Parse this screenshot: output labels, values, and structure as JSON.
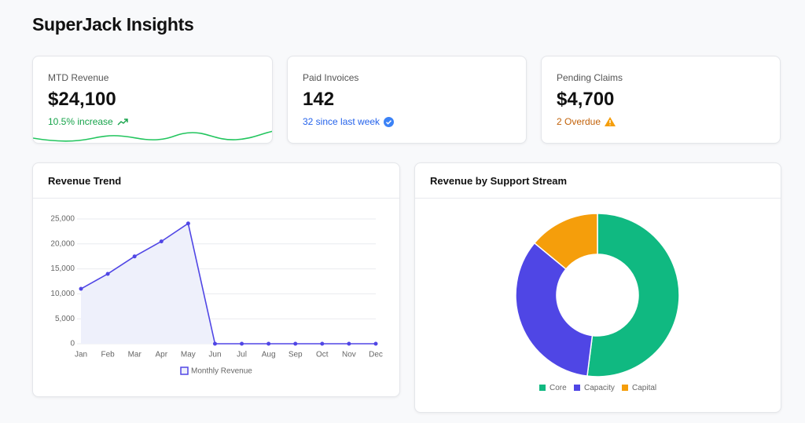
{
  "header": {
    "title": "SuperJack Insights"
  },
  "kpis": [
    {
      "label": "MTD Revenue",
      "value": "$24,100",
      "note": "10.5% increase"
    },
    {
      "label": "Paid Invoices",
      "value": "142",
      "note": "32 since last week"
    },
    {
      "label": "Pending Claims",
      "value": "$4,700",
      "note": "2 Overdue"
    }
  ],
  "chart_data": [
    {
      "type": "line",
      "title": "Revenue Trend",
      "categories": [
        "Jan",
        "Feb",
        "Mar",
        "Apr",
        "May",
        "Jun",
        "Jul",
        "Aug",
        "Sep",
        "Oct",
        "Nov",
        "Dec"
      ],
      "series": [
        {
          "name": "Monthly Revenue",
          "color": "#5046e5",
          "fill": "#eef0fb",
          "values": [
            11000,
            14000,
            17500,
            20500,
            24100,
            0,
            0,
            0,
            0,
            0,
            0,
            0
          ]
        }
      ],
      "ylim": [
        0,
        25000
      ],
      "yticks": [
        0,
        {
          "value": 5000,
          "label": "5,000"
        },
        {
          "value": 10000,
          "label": "10,000"
        },
        {
          "value": 15000,
          "label": "15,000"
        },
        {
          "value": 20000,
          "label": "20,000"
        },
        {
          "value": 25000,
          "label": "25,000"
        }
      ],
      "grid": true
    },
    {
      "type": "pie",
      "title": "Revenue by Support Stream",
      "categories": [
        "Core",
        "Capacity",
        "Capital"
      ],
      "values": [
        52,
        34,
        14
      ],
      "colors": [
        "#10b981",
        "#4f46e5",
        "#f59e0b"
      ]
    }
  ]
}
